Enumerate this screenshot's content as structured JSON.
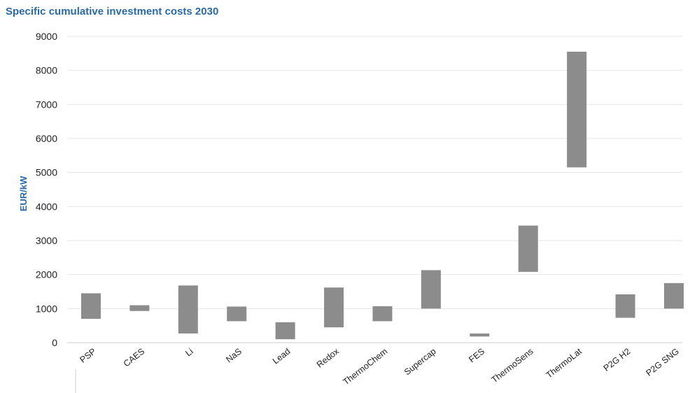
{
  "chart_data": {
    "type": "bar",
    "subtype": "floating-range",
    "title": "Specific cumulative investment costs 2030",
    "xlabel": "",
    "ylabel": "EUR/kW",
    "ylim": [
      0,
      9000
    ],
    "yticks": [
      0,
      1000,
      2000,
      3000,
      4000,
      5000,
      6000,
      7000,
      8000,
      9000
    ],
    "grid": true,
    "bar_color": "#8c8c8c",
    "categories": [
      "PSP",
      "CAES",
      "Li",
      "NaS",
      "Lead",
      "Redox",
      "ThermoChem",
      "Supercap",
      "FES",
      "ThermoSens",
      "ThermoLat",
      "P2G H2",
      "P2G SNG"
    ],
    "series": [
      {
        "low": [
          700,
          930,
          270,
          630,
          100,
          450,
          630,
          1000,
          180,
          2080,
          5150,
          730,
          1000
        ],
        "high": [
          1450,
          1100,
          1680,
          1060,
          600,
          1620,
          1070,
          2130,
          270,
          3440,
          8550,
          1420,
          1750
        ]
      }
    ]
  }
}
